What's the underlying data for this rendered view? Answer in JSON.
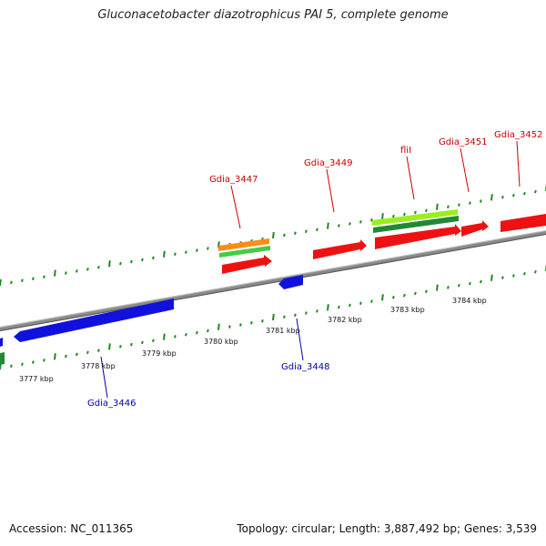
{
  "title": "Gluconacetobacter diazotrophicus PAI 5, complete genome",
  "footer": {
    "accession": "Accession: NC_011365",
    "summary": "Topology: circular; Length: 3,887,492 bp; Genes: 3,539"
  },
  "colors": {
    "backbone": "#8a8a8a",
    "forward_cds": "#ee1111",
    "reverse_cds": "#1111dd",
    "orange": "#ff8c1a",
    "light_green": "#99ee22",
    "mid_green": "#44cc44",
    "dark_green": "#228833",
    "ruler": "#228822",
    "top_label": "#cc0000",
    "bottom_label": "#0000aa"
  },
  "tick_labels": [
    "3777 kbp",
    "3778 kbp",
    "3779 kbp",
    "3780 kbp",
    "3781 kbp",
    "3782 kbp",
    "3783 kbp",
    "3784 kbp"
  ],
  "top_genes": [
    "Gdia_3447",
    "Gdia_3449",
    "fliI",
    "Gdia_3451",
    "Gdia_3452"
  ],
  "bottom_genes": [
    "Gdia_3446",
    "Gdia_3448"
  ]
}
